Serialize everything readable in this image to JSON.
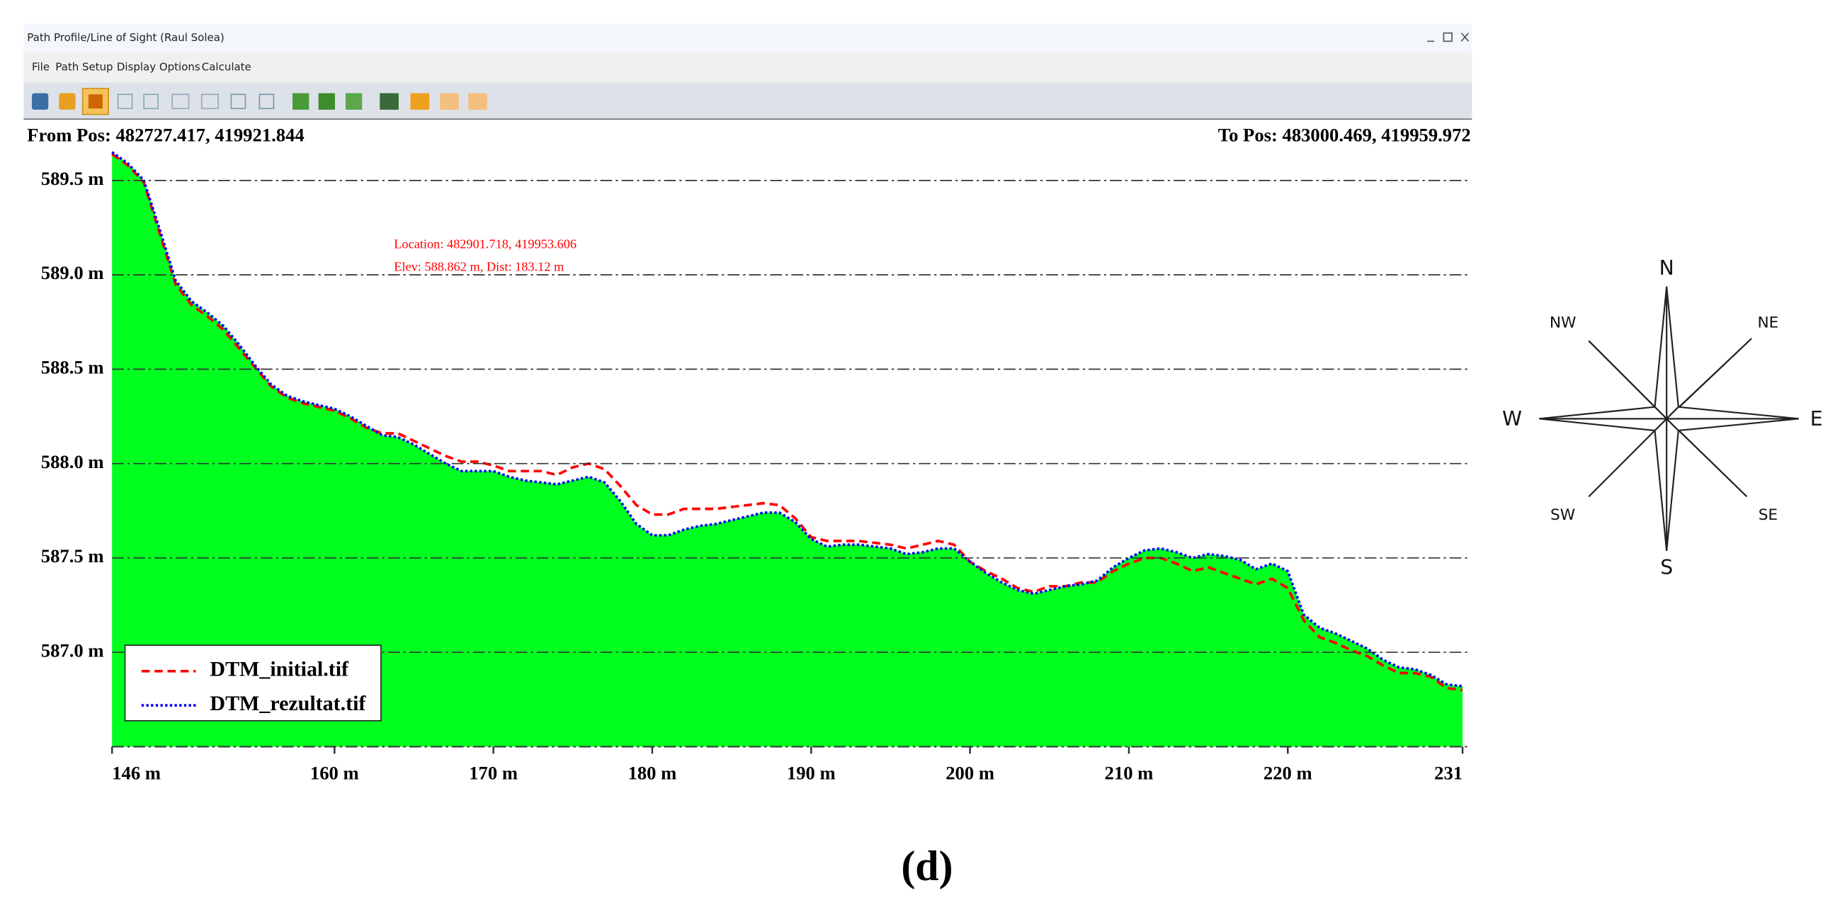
{
  "window": {
    "title": "Path Profile/Line of Sight (Raul Solea)",
    "menu": [
      "File",
      "Path Setup",
      "Display Options",
      "Calculate"
    ]
  },
  "from_pos": "From Pos: 482727.417, 419921.844",
  "to_pos": "To Pos: 483000.469, 419959.972",
  "annotation": {
    "location": "Location: 482901.718, 419953.606",
    "elev": "Elev: 588.862 m, Dist: 183.12 m"
  },
  "chart_data": {
    "type": "line",
    "x": [
      146,
      147,
      148,
      149,
      150,
      151,
      152,
      153,
      154,
      155,
      156,
      157,
      158,
      159,
      160,
      161,
      162,
      163,
      164,
      165,
      166,
      167,
      168,
      169,
      170,
      171,
      172,
      173,
      174,
      175,
      176,
      177,
      178,
      179,
      180,
      181,
      182,
      183,
      184,
      185,
      186,
      187,
      188,
      189,
      190,
      191,
      192,
      193,
      194,
      195,
      196,
      197,
      198,
      199,
      200,
      201,
      202,
      203,
      204,
      205,
      206,
      207,
      208,
      209,
      210,
      211,
      212,
      213,
      214,
      215,
      216,
      217,
      218,
      219,
      220,
      221,
      222,
      223,
      224,
      225,
      226,
      227,
      228,
      229,
      230,
      231
    ],
    "series": [
      {
        "name": "DTM_initial.tif",
        "color": "#ff0000",
        "linestyle": "dashed",
        "values": [
          589.64,
          589.58,
          589.49,
          589.22,
          588.95,
          588.84,
          588.78,
          588.71,
          588.61,
          588.51,
          588.41,
          588.35,
          588.32,
          588.3,
          588.28,
          588.24,
          588.19,
          588.16,
          588.16,
          588.12,
          588.08,
          588.04,
          588.01,
          588.01,
          587.99,
          587.96,
          587.96,
          587.96,
          587.94,
          587.98,
          588.0,
          587.97,
          587.88,
          587.78,
          587.73,
          587.73,
          587.76,
          587.76,
          587.76,
          587.77,
          587.78,
          587.79,
          587.78,
          587.71,
          587.61,
          587.59,
          587.59,
          587.59,
          587.58,
          587.57,
          587.55,
          587.57,
          587.59,
          587.57,
          587.48,
          587.43,
          587.39,
          587.34,
          587.32,
          587.35,
          587.35,
          587.37,
          587.37,
          587.43,
          587.47,
          587.5,
          587.5,
          587.47,
          587.43,
          587.45,
          587.42,
          587.39,
          587.36,
          587.39,
          587.34,
          587.17,
          587.08,
          587.05,
          587.01,
          586.98,
          586.93,
          586.89,
          586.89,
          586.87,
          586.81,
          586.8
        ]
      },
      {
        "name": "DTM_rezultat.tif",
        "color": "#0000ff",
        "linestyle": "dotted",
        "fill": "#00ff1e",
        "values": [
          589.65,
          589.59,
          589.5,
          589.24,
          588.97,
          588.86,
          588.8,
          588.73,
          588.63,
          588.52,
          588.42,
          588.36,
          588.33,
          588.31,
          588.29,
          588.25,
          588.2,
          588.15,
          588.14,
          588.1,
          588.05,
          588.0,
          587.96,
          587.96,
          587.96,
          587.93,
          587.91,
          587.9,
          587.89,
          587.91,
          587.93,
          587.9,
          587.8,
          587.68,
          587.62,
          587.62,
          587.65,
          587.67,
          587.68,
          587.7,
          587.72,
          587.74,
          587.74,
          587.69,
          587.6,
          587.56,
          587.57,
          587.57,
          587.56,
          587.55,
          587.52,
          587.53,
          587.55,
          587.55,
          587.48,
          587.42,
          587.37,
          587.33,
          587.31,
          587.33,
          587.35,
          587.36,
          587.38,
          587.45,
          587.5,
          587.54,
          587.55,
          587.53,
          587.5,
          587.52,
          587.51,
          587.49,
          587.44,
          587.47,
          587.43,
          587.2,
          587.13,
          587.1,
          587.06,
          587.02,
          586.96,
          586.92,
          586.91,
          586.88,
          586.83,
          586.82
        ]
      }
    ],
    "xlim": [
      146,
      231
    ],
    "xticks": [
      {
        "value": 146,
        "label": "146 m"
      },
      {
        "value": 160,
        "label": "160 m"
      },
      {
        "value": 170,
        "label": "170 m"
      },
      {
        "value": 180,
        "label": "180 m"
      },
      {
        "value": 190,
        "label": "190 m"
      },
      {
        "value": 200,
        "label": "200 m"
      },
      {
        "value": 210,
        "label": "210 m"
      },
      {
        "value": 220,
        "label": "220 m"
      },
      231
    ],
    "ylim": [
      586.5,
      589.65
    ],
    "yticks": [
      {
        "value": 587.0,
        "label": "587.0 m"
      },
      {
        "value": 587.5,
        "label": "587.5 m"
      },
      {
        "value": 588.0,
        "label": "588.0 m"
      },
      {
        "value": 588.5,
        "label": "588.5 m"
      },
      {
        "value": 589.0,
        "label": "589.0 m"
      },
      {
        "value": 589.5,
        "label": "589.5 m"
      }
    ],
    "grid": true,
    "legend": "lower left"
  },
  "compass": {
    "n": "N",
    "ne": "NE",
    "e": "E",
    "se": "SE",
    "s": "S",
    "sw": "SW",
    "w": "W",
    "nw": "NW"
  },
  "caption": "(d)"
}
